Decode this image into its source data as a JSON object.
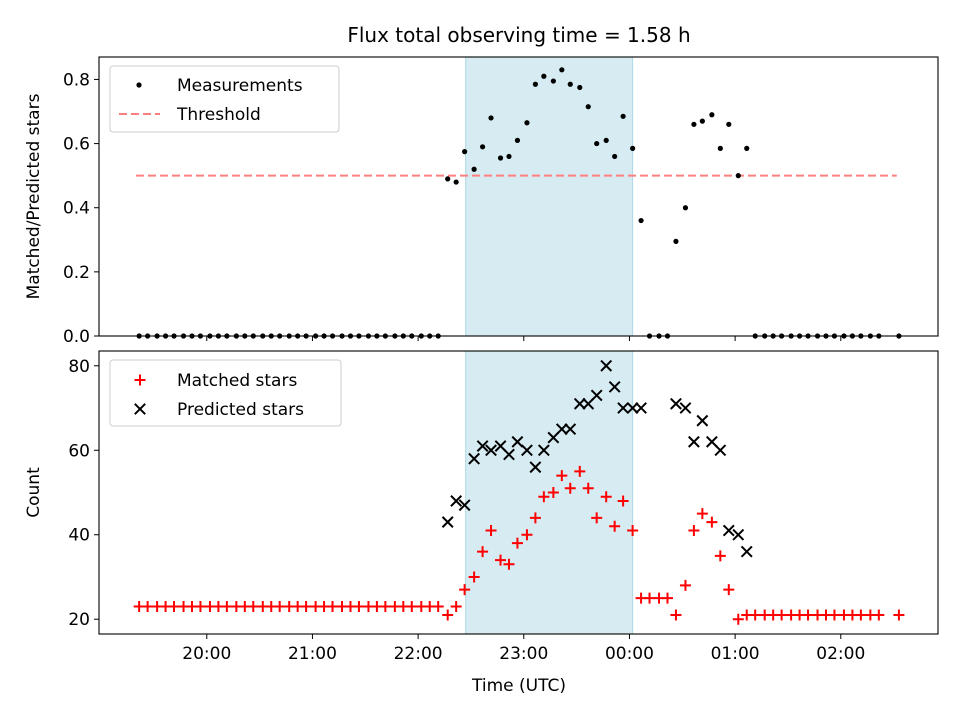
{
  "figure": {
    "title": "Flux total observing time = 1.58 h",
    "xlabel": "Time (UTC)",
    "x_ticks": [
      "20:00",
      "21:00",
      "22:00",
      "23:00",
      "00:00",
      "01:00",
      "02:00"
    ],
    "x_tick_hours": [
      20,
      21,
      22,
      23,
      24,
      25,
      26
    ],
    "x_range_hours": [
      18.98,
      26.92
    ],
    "observing_window_hours": [
      22.45,
      24.03
    ],
    "colors": {
      "band": "#add8e6",
      "threshold": "#ff7f7f",
      "matched": "#ff0000",
      "predicted": "#000000",
      "measurement": "#000000"
    }
  },
  "chart_data": [
    {
      "type": "scatter",
      "ylabel": "Matched/Predicted stars",
      "ylim": [
        0,
        0.87
      ],
      "y_ticks": [
        "0.0",
        "0.2",
        "0.4",
        "0.6",
        "0.8"
      ],
      "y_tick_values": [
        0,
        0.2,
        0.4,
        0.6,
        0.8
      ],
      "legend": {
        "position": "upper-left",
        "entries": [
          "Measurements",
          "Threshold"
        ]
      },
      "threshold": {
        "name": "Threshold",
        "value": 0.5,
        "x_range_hours": [
          19.33,
          26.53
        ],
        "style": "dashed"
      },
      "series": [
        {
          "name": "Measurements",
          "x": [
            19.36,
            19.44,
            19.53,
            19.61,
            19.69,
            19.78,
            19.86,
            19.94,
            20.03,
            20.11,
            20.19,
            20.28,
            20.36,
            20.44,
            20.53,
            20.61,
            20.69,
            20.78,
            20.86,
            20.94,
            21.03,
            21.11,
            21.19,
            21.28,
            21.36,
            21.44,
            21.53,
            21.61,
            21.69,
            21.78,
            21.86,
            21.94,
            22.03,
            22.11,
            22.19,
            22.28,
            22.36,
            22.44,
            22.53,
            22.61,
            22.69,
            22.78,
            22.86,
            22.94,
            23.03,
            23.11,
            23.19,
            23.28,
            23.36,
            23.44,
            23.53,
            23.61,
            23.69,
            23.78,
            23.86,
            23.94,
            24.03,
            24.11,
            24.19,
            24.28,
            24.36,
            24.44,
            24.53,
            24.61,
            24.69,
            24.78,
            24.86,
            24.94,
            25.03,
            25.11,
            25.19,
            25.28,
            25.36,
            25.44,
            25.53,
            25.61,
            25.69,
            25.78,
            25.86,
            25.94,
            26.03,
            26.11,
            26.19,
            26.28,
            26.36,
            26.55
          ],
          "y": [
            0,
            0,
            0,
            0,
            0,
            0,
            0,
            0,
            0,
            0,
            0,
            0,
            0,
            0,
            0,
            0,
            0,
            0,
            0,
            0,
            0,
            0,
            0,
            0,
            0,
            0,
            0,
            0,
            0,
            0,
            0,
            0,
            0,
            0,
            0,
            0.49,
            0.48,
            0.575,
            0.52,
            0.59,
            0.68,
            0.555,
            0.56,
            0.61,
            0.665,
            0.785,
            0.81,
            0.795,
            0.83,
            0.785,
            0.775,
            0.715,
            0.6,
            0.61,
            0.56,
            0.685,
            0.585,
            0.36,
            0,
            0,
            0,
            0.295,
            0.4,
            0.66,
            0.67,
            0.69,
            0.585,
            0.66,
            0.5,
            0.585,
            0,
            0,
            0,
            0,
            0,
            0,
            0,
            0,
            0,
            0,
            0,
            0,
            0,
            0,
            0,
            0
          ]
        }
      ]
    },
    {
      "type": "scatter",
      "ylabel": "Count",
      "ylim": [
        16.5,
        83.5
      ],
      "y_ticks": [
        "20",
        "40",
        "60",
        "80"
      ],
      "y_tick_values": [
        20,
        40,
        60,
        80
      ],
      "legend": {
        "position": "upper-left",
        "entries": [
          "Matched stars",
          "Predicted stars"
        ]
      },
      "series": [
        {
          "name": "Matched stars",
          "marker": "plus",
          "x": [
            19.36,
            19.44,
            19.53,
            19.61,
            19.69,
            19.78,
            19.86,
            19.94,
            20.03,
            20.11,
            20.19,
            20.28,
            20.36,
            20.44,
            20.53,
            20.61,
            20.69,
            20.78,
            20.86,
            20.94,
            21.03,
            21.11,
            21.19,
            21.28,
            21.36,
            21.44,
            21.53,
            21.61,
            21.69,
            21.78,
            21.86,
            21.94,
            22.03,
            22.11,
            22.19,
            22.28,
            22.36,
            22.44,
            22.53,
            22.61,
            22.69,
            22.78,
            22.86,
            22.94,
            23.03,
            23.11,
            23.19,
            23.28,
            23.36,
            23.44,
            23.53,
            23.61,
            23.69,
            23.78,
            23.86,
            23.94,
            24.03,
            24.11,
            24.19,
            24.28,
            24.36,
            24.44,
            24.53,
            24.61,
            24.69,
            24.78,
            24.86,
            24.94,
            25.03,
            25.11,
            25.19,
            25.28,
            25.36,
            25.44,
            25.53,
            25.61,
            25.69,
            25.78,
            25.86,
            25.94,
            26.03,
            26.11,
            26.19,
            26.28,
            26.36,
            26.55
          ],
          "y": [
            23,
            23,
            23,
            23,
            23,
            23,
            23,
            23,
            23,
            23,
            23,
            23,
            23,
            23,
            23,
            23,
            23,
            23,
            23,
            23,
            23,
            23,
            23,
            23,
            23,
            23,
            23,
            23,
            23,
            23,
            23,
            23,
            23,
            23,
            23,
            21,
            23,
            27,
            30,
            36,
            41,
            34,
            33,
            38,
            40,
            44,
            49,
            50,
            54,
            51,
            55,
            51,
            44,
            49,
            42,
            48,
            41,
            25,
            25,
            25,
            25,
            21,
            28,
            41,
            45,
            43,
            35,
            27,
            20,
            21,
            21,
            21,
            21,
            21,
            21,
            21,
            21,
            21,
            21,
            21,
            21,
            21,
            21,
            21,
            21,
            21
          ]
        },
        {
          "name": "Predicted stars",
          "marker": "x",
          "x": [
            22.28,
            22.36,
            22.44,
            22.53,
            22.61,
            22.69,
            22.78,
            22.86,
            22.94,
            23.03,
            23.11,
            23.19,
            23.28,
            23.36,
            23.44,
            23.53,
            23.61,
            23.69,
            23.78,
            23.86,
            23.94,
            24.03,
            24.11,
            24.44,
            24.53,
            24.61,
            24.69,
            24.78,
            24.86,
            24.94,
            25.03,
            25.11
          ],
          "y": [
            43,
            48,
            47,
            58,
            61,
            60,
            61,
            59,
            62,
            60,
            56,
            60,
            63,
            65,
            65,
            71,
            71,
            73,
            80,
            75,
            70,
            70,
            70,
            71,
            70,
            62,
            67,
            62,
            60,
            41,
            40,
            36
          ]
        }
      ]
    }
  ]
}
